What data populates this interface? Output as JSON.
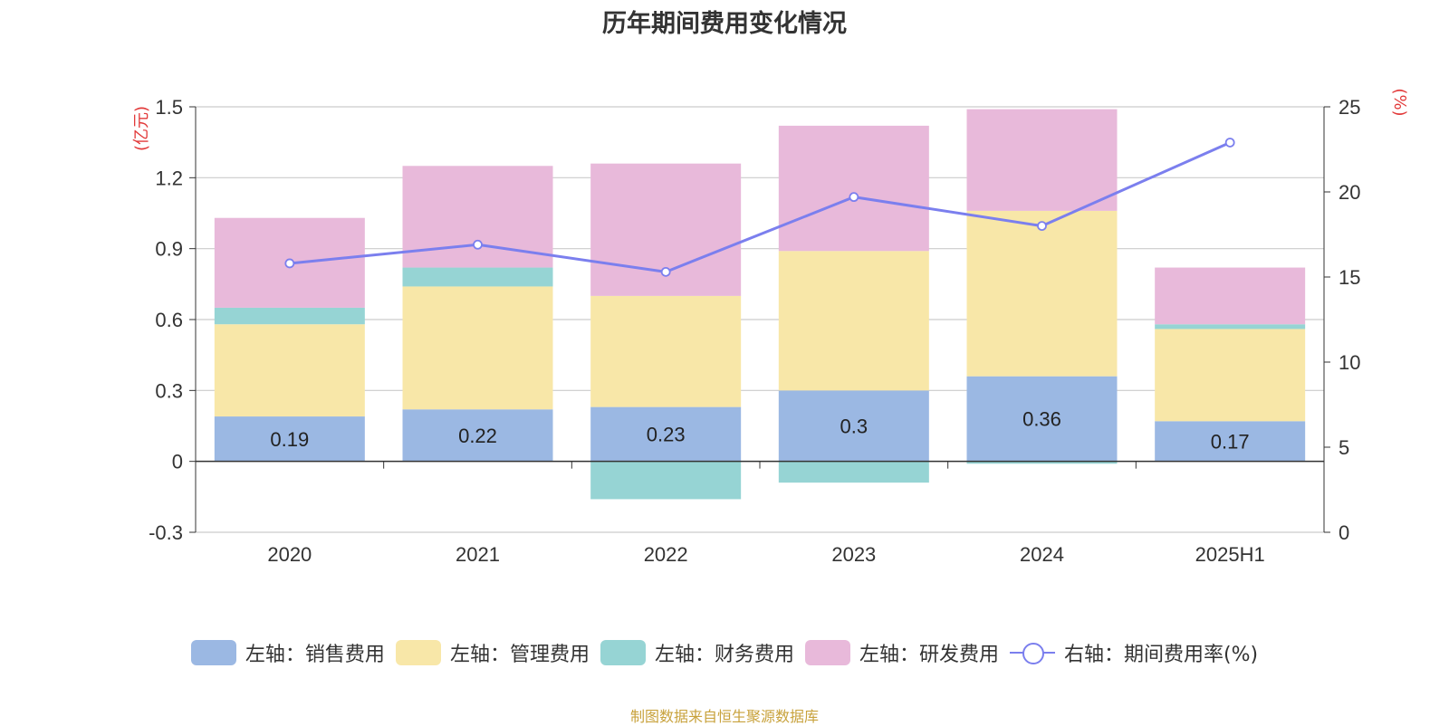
{
  "chart_data": {
    "type": "bar",
    "title": "历年期间费用变化情况",
    "left_unit": "(亿元)",
    "right_unit": "(%)",
    "categories": [
      "2020",
      "2021",
      "2022",
      "2023",
      "2024",
      "2025H1"
    ],
    "y_left": {
      "min": -0.3,
      "max": 1.5,
      "ticks": [
        "-0.3",
        "0",
        "0.3",
        "0.6",
        "0.9",
        "1.2",
        "1.5"
      ]
    },
    "y_right": {
      "min": 0,
      "max": 25,
      "ticks": [
        "0",
        "5",
        "10",
        "15",
        "20",
        "25"
      ]
    },
    "grid": true,
    "stacked": true,
    "series": [
      {
        "name": "左轴：销售费用",
        "type": "bar",
        "axis": "left",
        "color": "#9bb8e3",
        "values": [
          0.19,
          0.22,
          0.23,
          0.3,
          0.36,
          0.17
        ],
        "labels": [
          "0.19",
          "0.22",
          "0.23",
          "0.3",
          "0.36",
          "0.17"
        ]
      },
      {
        "name": "左轴：管理费用",
        "type": "bar",
        "axis": "left",
        "color": "#f8e7a8",
        "values": [
          0.39,
          0.52,
          0.47,
          0.59,
          0.7,
          0.39
        ]
      },
      {
        "name": "左轴：财务费用",
        "type": "bar",
        "axis": "left",
        "color": "#96d4d4",
        "values": [
          0.07,
          0.08,
          -0.16,
          -0.09,
          -0.01,
          0.02
        ]
      },
      {
        "name": "左轴：研发费用",
        "type": "bar",
        "axis": "left",
        "color": "#e8b9da",
        "values": [
          0.38,
          0.43,
          0.56,
          0.53,
          0.43,
          0.24
        ]
      },
      {
        "name": "右轴：期间费用率(%)",
        "type": "line",
        "axis": "right",
        "color": "#7b7fee",
        "values": [
          15.8,
          16.9,
          15.3,
          19.7,
          18.0,
          22.9
        ]
      }
    ]
  },
  "footer": {
    "source": "制图数据来自恒生聚源数据库"
  }
}
